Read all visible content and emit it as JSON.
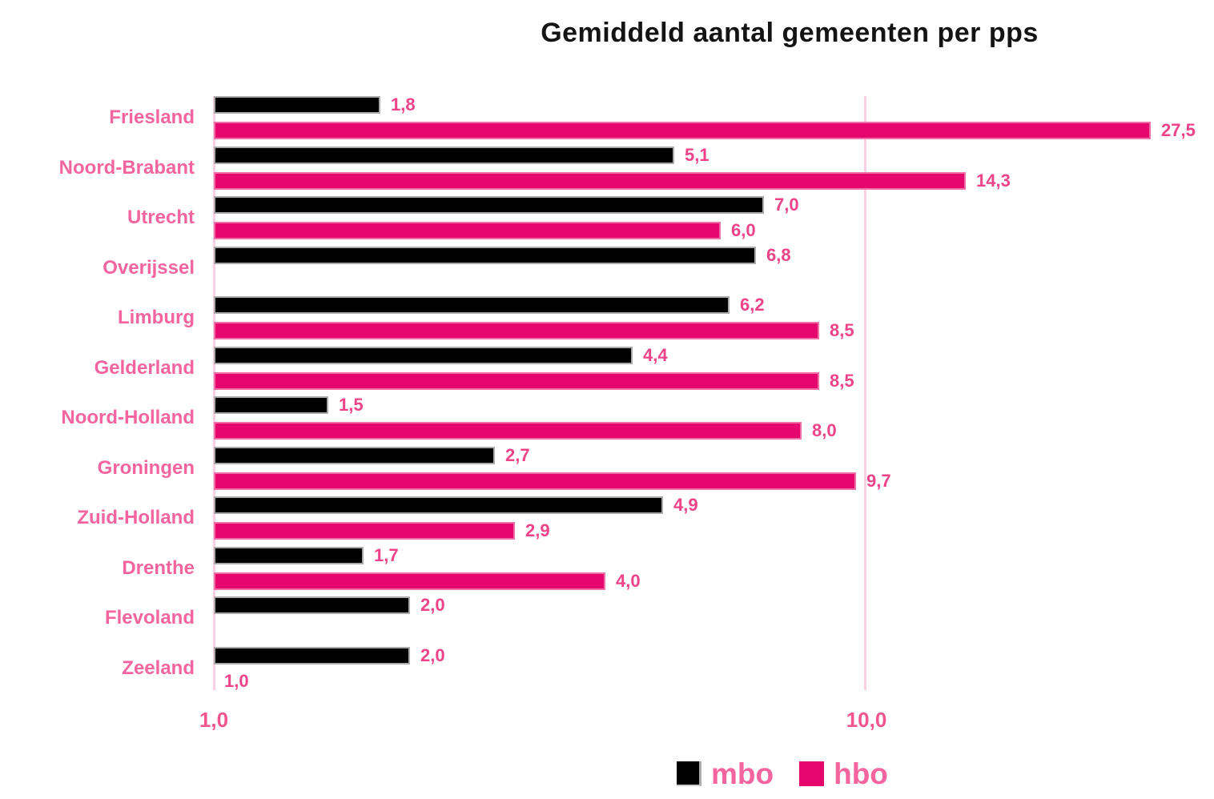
{
  "title": "Gemiddeld aantal gemeenten per pps",
  "chart_data": {
    "type": "bar",
    "orientation": "horizontal",
    "x_scale": "log",
    "x_range": [
      1.0,
      30.0
    ],
    "grid": "vertical lines at 1,0 and 10,0",
    "x_ticks": [
      "1,0",
      "10,0"
    ],
    "x_tick_values": [
      1.0,
      10.0
    ],
    "categories": [
      "Friesland",
      "Noord-Brabant",
      "Utrecht",
      "Overijssel",
      "Limburg",
      "Gelderland",
      "Noord-Holland",
      "Groningen",
      "Zuid-Holland",
      "Drenthe",
      "Flevoland",
      "Zeeland"
    ],
    "series": [
      {
        "name": "mbo",
        "color": "#000000",
        "values": [
          1.8,
          5.1,
          7.0,
          6.8,
          6.2,
          4.4,
          1.5,
          2.7,
          4.9,
          1.7,
          2.0,
          2.0
        ],
        "labels": [
          "1,8",
          "5,1",
          "7,0",
          "6,8",
          "6,2",
          "4,4",
          "1,5",
          "2,7",
          "4,9",
          "1,7",
          "2,0",
          "2,0"
        ]
      },
      {
        "name": "hbo",
        "color": "#e5066e",
        "values": [
          27.5,
          14.3,
          6.0,
          null,
          8.5,
          8.5,
          8.0,
          9.7,
          2.9,
          4.0,
          null,
          1.0
        ],
        "labels": [
          "27,5",
          "14,3",
          "6,0",
          null,
          "8,5",
          "8,5",
          "8,0",
          "9,7",
          "2,9",
          "4,0",
          null,
          "1,0"
        ]
      }
    ],
    "legend": [
      "mbo",
      "hbo"
    ],
    "legend_position": "bottom"
  },
  "colors": {
    "mbo_bar": "#000000",
    "mbo_bar_border": "#ababab",
    "hbo_bar": "#e5066e",
    "hbo_bar_border": "#f06fa9",
    "category_label": "#f4659f",
    "value_label": "#ee4389",
    "tick_label": "#f0558f",
    "gridline": "#fbd0e3",
    "title": "#141414"
  }
}
